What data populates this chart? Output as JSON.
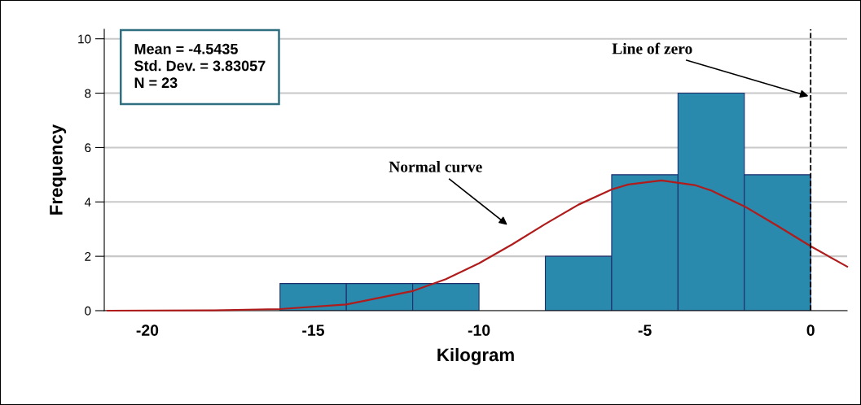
{
  "chart_data": {
    "type": "histogram",
    "xlabel": "Kilogram",
    "ylabel": "Frequency",
    "bins": [
      -16,
      -14,
      -12,
      -10,
      -8,
      -6,
      -4,
      -2,
      0
    ],
    "values": [
      1,
      1,
      1,
      0,
      2,
      5,
      8,
      5
    ],
    "color": "#2a8aad",
    "series": [
      {
        "type": "line",
        "color": "#b01c1c",
        "x": [
          -21.2,
          -18,
          -16,
          -14,
          -12,
          -11,
          -10,
          -9,
          -8,
          -7,
          -6,
          -5.5,
          -4.5,
          -3.5,
          -3,
          -2,
          -1,
          0,
          1.1
        ],
        "values": [
          0,
          0.01,
          0.06,
          0.23,
          0.72,
          1.16,
          1.74,
          2.44,
          3.19,
          3.9,
          4.46,
          4.64,
          4.79,
          4.62,
          4.42,
          3.84,
          3.12,
          2.37,
          1.62
        ]
      }
    ],
    "xlim": [
      -21.3,
      1.1
    ],
    "ylim": [
      0,
      10.35
    ],
    "xticks": [
      -20,
      -15,
      -10,
      -5,
      0
    ],
    "yticks": [
      0,
      2,
      4,
      6,
      8,
      10
    ],
    "grid": "y",
    "ref_lines": [
      {
        "axis": "x",
        "value": 0,
        "label": "Line of zero",
        "color": "#000000",
        "line_style": "dashed"
      }
    ],
    "annotations": [
      "Mean = -4.5435\nStd. Dev. = 3.83057\nN = 23",
      "Normal curve"
    ]
  }
}
